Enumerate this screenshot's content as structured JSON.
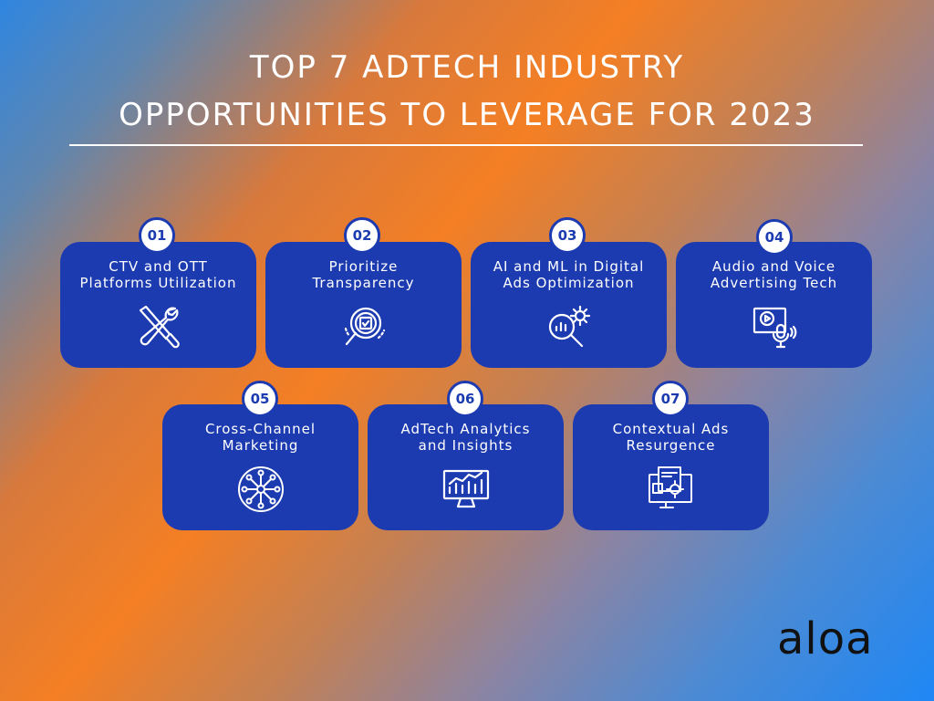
{
  "title": {
    "line1": "TOP 7 ADTECH INDUSTRY",
    "line2": "OPPORTUNITIES TO LEVERAGE FOR 2023"
  },
  "cards": [
    {
      "number": "01",
      "label_line1": "CTV and OTT",
      "label_line2": "Platforms Utilization",
      "icon": "wrench-screwdriver-icon"
    },
    {
      "number": "02",
      "label_line1": "Prioritize",
      "label_line2": "Transparency",
      "icon": "magnifier-check-icon"
    },
    {
      "number": "03",
      "label_line1": "AI and ML in Digital",
      "label_line2": "Ads Optimization",
      "icon": "gear-magnifier-chart-icon"
    },
    {
      "number": "04",
      "label_line1": "Audio and Voice",
      "label_line2": "Advertising Tech",
      "icon": "video-microphone-icon"
    },
    {
      "number": "05",
      "label_line1": "Cross-Channel",
      "label_line2": "Marketing",
      "icon": "network-hub-icon"
    },
    {
      "number": "06",
      "label_line1": "AdTech Analytics",
      "label_line2": "and Insights",
      "icon": "monitor-analytics-icon"
    },
    {
      "number": "07",
      "label_line1": "Contextual Ads",
      "label_line2": "Resurgence",
      "icon": "screen-document-gear-icon"
    }
  ],
  "logo": {
    "text": "aloa"
  },
  "colors": {
    "card": "#1c3bb0",
    "badge_bg": "#ffffff",
    "text": "#ffffff"
  }
}
